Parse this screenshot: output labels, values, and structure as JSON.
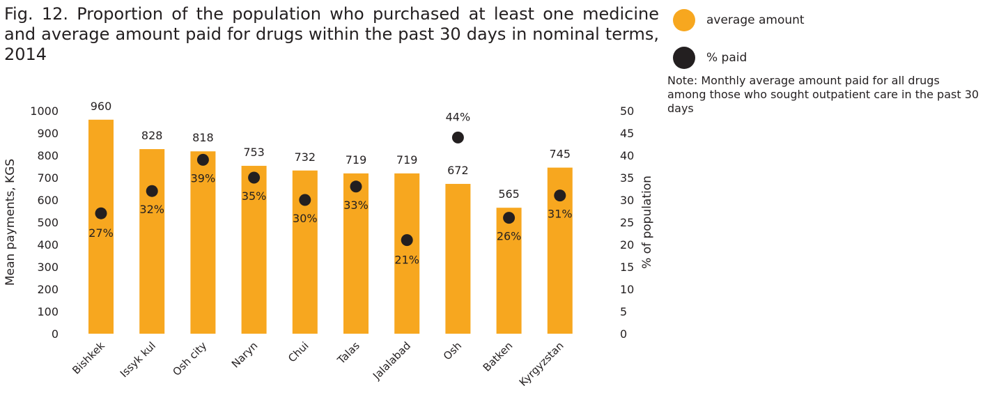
{
  "figure": {
    "title": "Fig. 12. Proportion of the population who purchased at least one medicine and average amount paid for drugs within the past 30 days in nominal terms, 2014",
    "note": "Note: Monthly average amount paid for all drugs among those who sought outpatient care in the past 30 days"
  },
  "legend": [
    {
      "label": "average amount",
      "color": "#f7a71f",
      "shape": "circle"
    },
    {
      "label": "% paid",
      "color": "#231f20",
      "shape": "circle"
    }
  ],
  "chart_data": {
    "type": "bar",
    "categories": [
      "Bishkek",
      "Issyk kul",
      "Osh city",
      "Naryn",
      "Chui",
      "Talas",
      "Jalalabad",
      "Osh",
      "Batken",
      "Kyrgyzstan"
    ],
    "series": [
      {
        "name": "average amount",
        "type": "bar",
        "axis": "left",
        "color": "#f7a71f",
        "values": [
          960,
          828,
          818,
          753,
          732,
          719,
          719,
          672,
          565,
          745
        ],
        "labels": [
          "960",
          "828",
          "818",
          "753",
          "732",
          "719",
          "719",
          "672",
          "565",
          "745"
        ]
      },
      {
        "name": "% paid",
        "type": "scatter",
        "axis": "right",
        "color": "#231f20",
        "values": [
          27,
          32,
          39,
          35,
          30,
          33,
          21,
          44,
          26,
          31
        ],
        "labels": [
          "27%",
          "32%",
          "39%",
          "35%",
          "30%",
          "33%",
          "21%",
          "44%",
          "26%",
          "31%"
        ]
      }
    ],
    "ylabel": "Mean payments, KGS",
    "ylim": [
      0,
      1000
    ],
    "yticks": [
      "0",
      "100",
      "200",
      "300",
      "400",
      "500",
      "600",
      "700",
      "800",
      "900",
      "1000"
    ],
    "y2label": "% of population",
    "y2lim": [
      0,
      50
    ],
    "y2ticks": [
      "0",
      "5",
      "10",
      "15",
      "20",
      "25",
      "30",
      "35",
      "40",
      "45",
      "50"
    ],
    "grid": false,
    "legend_position": "top-right"
  }
}
